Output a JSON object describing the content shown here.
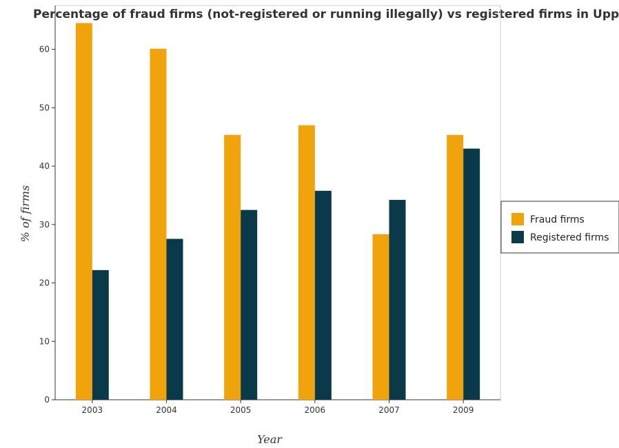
{
  "chart_data": {
    "type": "bar",
    "title": "Percentage of fraud firms (not-registered or running illegally) vs registered firms in Upper middle income",
    "xlabel": "Year",
    "ylabel": "% of firms",
    "categories": [
      "2003",
      "2004",
      "2005",
      "2006",
      "2007",
      "2009"
    ],
    "series": [
      {
        "name": "Fraud firms",
        "color": "#f0a30a",
        "values": [
          64.5,
          60.1,
          45.35,
          47.0,
          28.35,
          45.35
        ]
      },
      {
        "name": "Registered firms",
        "color": "#0a3a4a",
        "values": [
          22.2,
          27.55,
          32.5,
          35.78,
          34.22,
          43.0
        ]
      }
    ],
    "ylim": [
      0,
      67.5
    ],
    "yticks": [
      0,
      10,
      20,
      30,
      40,
      50,
      60
    ],
    "legend_position": "right",
    "grid": false
  }
}
